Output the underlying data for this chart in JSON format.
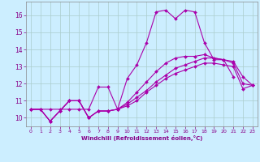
{
  "bg_color": "#cceeff",
  "grid_color": "#aacccc",
  "line_color": "#aa00aa",
  "xlim": [
    -0.5,
    23.5
  ],
  "ylim": [
    9.5,
    16.8
  ],
  "xticks": [
    0,
    1,
    2,
    3,
    4,
    5,
    6,
    7,
    8,
    9,
    10,
    11,
    12,
    13,
    14,
    15,
    16,
    17,
    18,
    19,
    20,
    21,
    22,
    23
  ],
  "yticks": [
    10,
    11,
    12,
    13,
    14,
    15,
    16
  ],
  "xlabel": "Windchill (Refroidissement éolien,°C)",
  "series": [
    {
      "x": [
        0,
        1,
        2,
        3,
        4,
        5,
        6,
        7,
        8,
        9,
        10,
        11,
        12,
        13,
        14,
        15,
        16,
        17,
        18,
        19,
        20,
        21
      ],
      "y": [
        10.5,
        10.5,
        10.5,
        10.5,
        10.5,
        10.5,
        10.5,
        11.8,
        11.8,
        10.5,
        12.3,
        13.1,
        14.4,
        16.2,
        16.3,
        15.8,
        16.3,
        16.2,
        14.4,
        13.4,
        13.4,
        12.4
      ]
    },
    {
      "x": [
        0,
        1,
        2,
        3,
        4,
        5,
        6,
        7,
        8,
        9,
        10,
        11,
        12,
        13,
        14,
        15,
        16,
        17,
        18,
        19,
        20,
        21,
        22,
        23
      ],
      "y": [
        10.5,
        10.5,
        9.8,
        10.4,
        11.0,
        11.0,
        10.0,
        10.4,
        10.4,
        10.5,
        10.9,
        11.5,
        12.1,
        12.7,
        13.2,
        13.5,
        13.6,
        13.6,
        13.7,
        13.5,
        13.4,
        13.3,
        12.4,
        11.9
      ]
    },
    {
      "x": [
        0,
        1,
        2,
        3,
        4,
        5,
        6,
        7,
        8,
        9,
        10,
        11,
        12,
        13,
        14,
        15,
        16,
        17,
        18,
        19,
        20,
        21,
        22,
        23
      ],
      "y": [
        10.5,
        10.5,
        9.8,
        10.4,
        11.0,
        11.0,
        10.0,
        10.4,
        10.4,
        10.5,
        10.8,
        11.2,
        11.6,
        12.1,
        12.5,
        12.9,
        13.1,
        13.3,
        13.5,
        13.5,
        13.4,
        13.2,
        12.0,
        11.9
      ]
    },
    {
      "x": [
        0,
        1,
        2,
        3,
        4,
        5,
        6,
        7,
        8,
        9,
        10,
        11,
        12,
        13,
        14,
        15,
        16,
        17,
        18,
        19,
        20,
        21,
        22,
        23
      ],
      "y": [
        10.5,
        10.5,
        9.8,
        10.4,
        11.0,
        11.0,
        10.0,
        10.4,
        10.4,
        10.5,
        10.7,
        11.0,
        11.5,
        11.9,
        12.3,
        12.6,
        12.8,
        13.0,
        13.2,
        13.2,
        13.1,
        13.0,
        11.7,
        11.9
      ]
    }
  ]
}
